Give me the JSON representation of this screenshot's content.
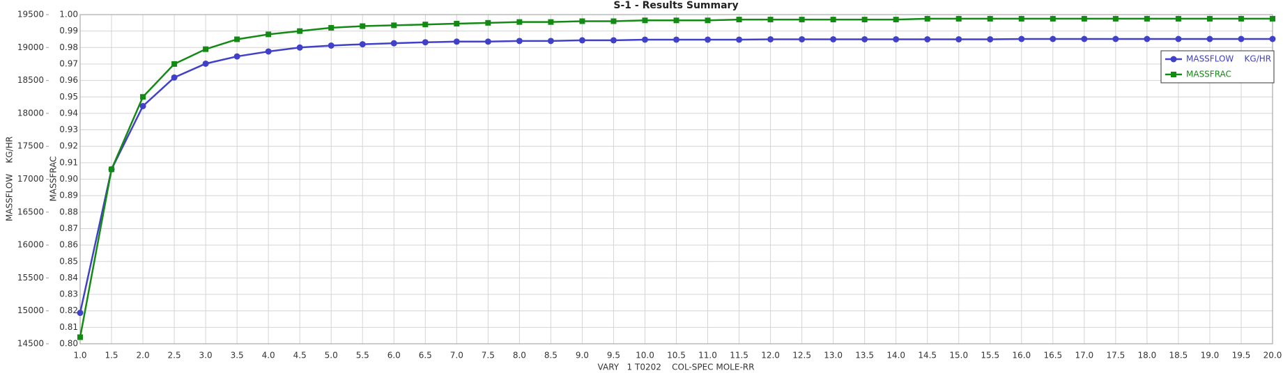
{
  "chart_data": {
    "type": "line",
    "title": "S-1 - Results Summary",
    "xlabel": "VARY   1 T0202    COL-SPEC MOLE-RR",
    "ylabel": "MASSFLOW    KG/HR",
    "y2label": "MASSFRAC",
    "x": [
      1,
      1.5,
      2,
      2.5,
      3,
      3.5,
      4,
      4.5,
      5,
      5.5,
      6,
      6.5,
      7,
      7.5,
      8,
      8.5,
      9,
      9.5,
      10,
      10.5,
      11,
      11.5,
      12,
      12.5,
      13,
      13.5,
      14,
      14.5,
      15,
      15.5,
      16,
      16.5,
      17,
      17.5,
      18,
      18.5,
      19,
      19.5,
      20
    ],
    "xlim": [
      1,
      20
    ],
    "xticks": [
      {
        "value": 1,
        "label": "1.0"
      },
      1.5,
      {
        "value": 2,
        "label": "2.0"
      },
      2.5,
      {
        "value": 3,
        "label": "3.0"
      },
      3.5,
      {
        "value": 4,
        "label": "4.0"
      },
      4.5,
      {
        "value": 5,
        "label": "5.0"
      },
      5.5,
      {
        "value": 6,
        "label": "6.0"
      },
      6.5,
      {
        "value": 7,
        "label": "7.0"
      },
      7.5,
      {
        "value": 8,
        "label": "8.0"
      },
      8.5,
      {
        "value": 9,
        "label": "9.0"
      },
      9.5,
      {
        "value": 10,
        "label": "10.0"
      },
      10.5,
      {
        "value": 11,
        "label": "11.0"
      },
      11.5,
      {
        "value": 12,
        "label": "12.0"
      },
      12.5,
      {
        "value": 13,
        "label": "13.0"
      },
      13.5,
      {
        "value": 14,
        "label": "14.0"
      },
      14.5,
      {
        "value": 15,
        "label": "15.0"
      },
      15.5,
      {
        "value": 16,
        "label": "16.0"
      },
      16.5,
      {
        "value": 17,
        "label": "17.0"
      },
      17.5,
      {
        "value": 18,
        "label": "18.0"
      },
      18.5,
      {
        "value": 19,
        "label": "19.0"
      },
      19.5,
      {
        "value": 20,
        "label": "20.0"
      }
    ],
    "ylim": [
      14500,
      19500
    ],
    "yticks": [
      14500,
      15000,
      15500,
      16000,
      16500,
      17000,
      17500,
      18000,
      18500,
      19000,
      19500
    ],
    "y2lim": [
      0.8,
      1.0
    ],
    "y2ticks": [
      {
        "value": 0.8,
        "label": "0.80"
      },
      0.81,
      0.82,
      0.83,
      0.84,
      0.85,
      0.86,
      0.87,
      0.88,
      0.89,
      {
        "value": 0.9,
        "label": "0.90"
      },
      0.91,
      0.92,
      0.93,
      0.94,
      0.95,
      0.96,
      0.97,
      0.98,
      0.99,
      {
        "value": 1.0,
        "label": "1.00"
      }
    ],
    "grid": true,
    "legend": "upper right",
    "series": [
      {
        "name": "MASSFLOW    KG/HR",
        "color": "#4040c8",
        "marker": "circle",
        "values": [
          14970,
          17150,
          18110,
          18545,
          18755,
          18865,
          18940,
          19000,
          19030,
          19050,
          19065,
          19080,
          19090,
          19090,
          19100,
          19100,
          19110,
          19110,
          19120,
          19120,
          19120,
          19120,
          19125,
          19125,
          19125,
          19125,
          19125,
          19125,
          19125,
          19125,
          19130,
          19130,
          19130,
          19130,
          19130,
          19130,
          19130,
          19130,
          19130
        ]
      },
      {
        "name": "MASSFRAC",
        "color": "#138a13",
        "marker": "square",
        "axis": "y2",
        "values": [
          0.804,
          0.906,
          0.95,
          0.97,
          0.979,
          0.985,
          0.988,
          0.99,
          0.992,
          0.993,
          0.9935,
          0.994,
          0.9945,
          0.995,
          0.9955,
          0.9955,
          0.996,
          0.996,
          0.9965,
          0.9965,
          0.9965,
          0.997,
          0.997,
          0.997,
          0.997,
          0.997,
          0.997,
          0.9975,
          0.9975,
          0.9975,
          0.9975,
          0.9975,
          0.9975,
          0.9975,
          0.9975,
          0.9975,
          0.9975,
          0.9975,
          0.9975
        ]
      }
    ]
  }
}
